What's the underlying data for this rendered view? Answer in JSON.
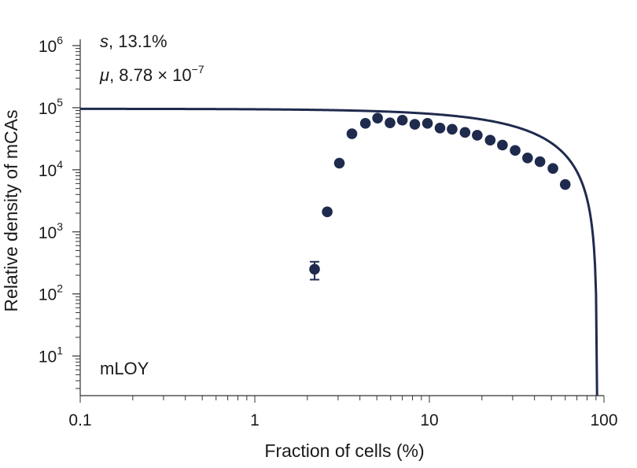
{
  "chart_data": {
    "type": "scatter",
    "title": "",
    "xlabel": "Fraction of cells (%)",
    "ylabel": "Relative density of mCAs",
    "x_scale": "log",
    "y_scale": "log",
    "xlim": [
      0.1,
      100
    ],
    "ylim": [
      2.3,
      1000000
    ],
    "x_ticks": [
      {
        "value": 0.1,
        "label": "0.1"
      },
      {
        "value": 1,
        "label": "1"
      },
      {
        "value": 10,
        "label": "10"
      },
      {
        "value": 100,
        "label": "100"
      }
    ],
    "y_ticks": [
      {
        "value": 10,
        "base": "10",
        "exp": "1"
      },
      {
        "value": 100,
        "base": "10",
        "exp": "2"
      },
      {
        "value": 1000,
        "base": "10",
        "exp": "3"
      },
      {
        "value": 10000,
        "base": "10",
        "exp": "4"
      },
      {
        "value": 100000,
        "base": "10",
        "exp": "5"
      },
      {
        "value": 1000000,
        "base": "10",
        "exp": "6"
      }
    ],
    "color": "#1f2b4d",
    "annotations": {
      "s_symbol": "s",
      "s_value": ", 13.1%",
      "mu_symbol": "μ",
      "mu_value": ", 8.78 × 10",
      "mu_exp": "−7",
      "label": "mLOY"
    },
    "points": [
      {
        "x": 2.2,
        "y": 250,
        "err_low": 170,
        "err_high": 330
      },
      {
        "x": 2.6,
        "y": 2100
      },
      {
        "x": 3.05,
        "y": 12800
      },
      {
        "x": 3.6,
        "y": 38000
      },
      {
        "x": 4.3,
        "y": 56000
      },
      {
        "x": 5.05,
        "y": 68000
      },
      {
        "x": 5.95,
        "y": 57000
      },
      {
        "x": 7.0,
        "y": 63000
      },
      {
        "x": 8.25,
        "y": 54000
      },
      {
        "x": 9.75,
        "y": 56000
      },
      {
        "x": 11.5,
        "y": 47000
      },
      {
        "x": 13.5,
        "y": 45000
      },
      {
        "x": 16.0,
        "y": 40000
      },
      {
        "x": 18.8,
        "y": 36000
      },
      {
        "x": 22.3,
        "y": 30000
      },
      {
        "x": 26.2,
        "y": 25000
      },
      {
        "x": 31.0,
        "y": 20500
      },
      {
        "x": 36.5,
        "y": 15500
      },
      {
        "x": 43.0,
        "y": 13500
      },
      {
        "x": 51.0,
        "y": 10500
      },
      {
        "x": 60.0,
        "y": 5800
      }
    ],
    "fit_line": {
      "plateau": 96000,
      "x_end": 91.3,
      "y_end": 2.3
    }
  }
}
